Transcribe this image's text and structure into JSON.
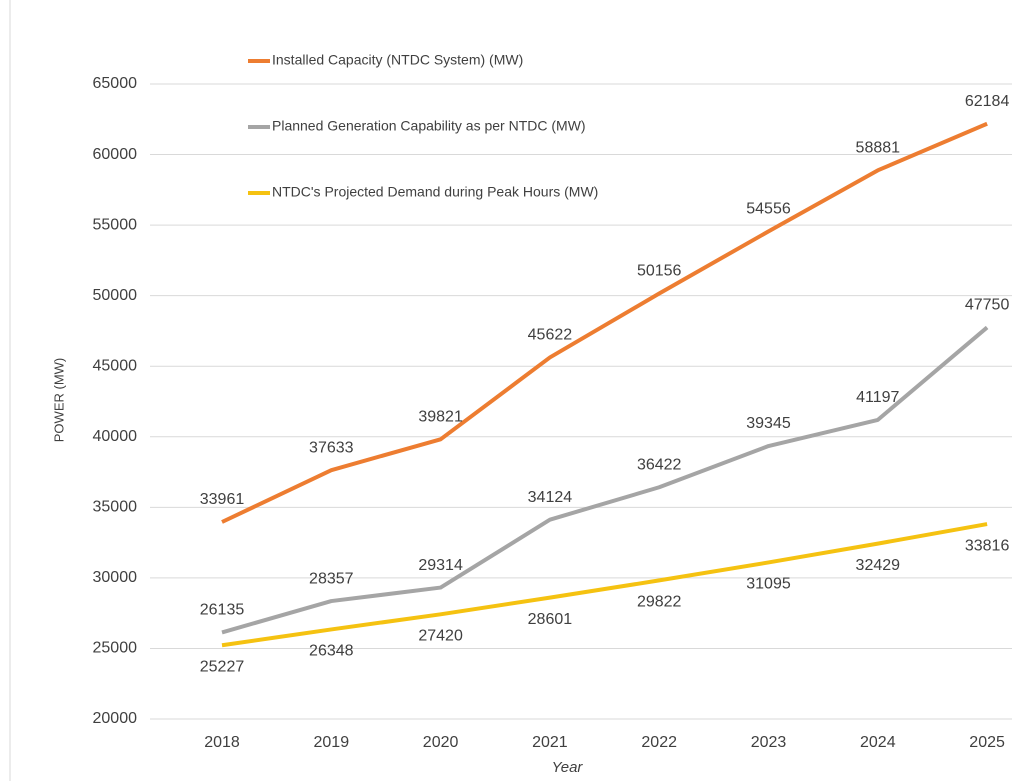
{
  "chart_data": {
    "type": "line",
    "x_label": "Year",
    "y_label": "POWER (MW)",
    "categories": [
      "2018",
      "2019",
      "2020",
      "2021",
      "2022",
      "2023",
      "2024",
      "2025"
    ],
    "series": [
      {
        "name": "Installed Capacity (NTDC System) (MW)",
        "color": "#ed7d31",
        "values": [
          33961,
          37633,
          39821,
          45622,
          50156,
          54556,
          58881,
          62184
        ]
      },
      {
        "name": "Planned Generation Capability as per NTDC (MW)",
        "color": "#a5a5a5",
        "values": [
          26135,
          28357,
          29314,
          34124,
          36422,
          39345,
          41197,
          47750
        ]
      },
      {
        "name": "NTDC's Projected Demand during Peak Hours (MW)",
        "color": "#f5c211",
        "values": [
          25227,
          26348,
          27420,
          28601,
          29822,
          31095,
          32429,
          33816
        ]
      }
    ],
    "ylim": [
      20000,
      65000
    ],
    "yticks": [
      20000,
      25000,
      30000,
      35000,
      40000,
      45000,
      50000,
      55000,
      60000,
      65000
    ],
    "grid": true
  }
}
